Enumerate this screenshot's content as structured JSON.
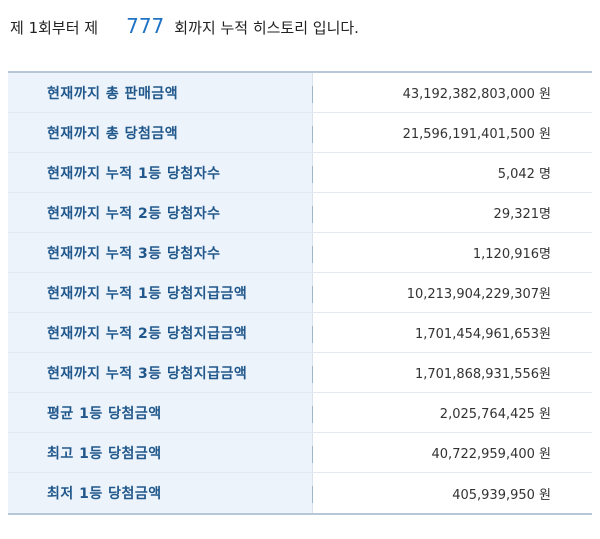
{
  "header": {
    "prefix": "제 1회부터 제",
    "round": "777",
    "suffix": "회까지 누적 히스토리 입니다."
  },
  "rows": [
    {
      "label": "현재까지 총 판매금액",
      "value": "43,192,382,803,000 원"
    },
    {
      "label": "현재까지 총 당첨금액",
      "value": "21,596,191,401,500 원"
    },
    {
      "label": "현재까지 누적 1등 당첨자수",
      "value": "5,042 명"
    },
    {
      "label": "현재까지 누적 2등 당첨자수",
      "value": "29,321명"
    },
    {
      "label": "현재까지 누적 3등 당첨자수",
      "value": "1,120,916명"
    },
    {
      "label": "현재까지 누적 1등 당첨지급금액",
      "value": "10,213,904,229,307원"
    },
    {
      "label": "현재까지 누적 2등 당첨지급금액",
      "value": "1,701,454,961,653원"
    },
    {
      "label": "현재까지 누적 3등 당첨지급금액",
      "value": "1,701,868,931,556원"
    },
    {
      "label": "평균 1등 당첨금액",
      "value": "2,025,764,425 원"
    },
    {
      "label": "최고 1등 당첨금액",
      "value": "40,722,959,400 원"
    },
    {
      "label": "최저 1등 당첨금액",
      "value": "405,939,950 원"
    }
  ],
  "colors": {
    "accent": "#1f73c4",
    "label_text": "#21588c",
    "label_bg": "#edf3fa",
    "border": "#b7c7d8"
  }
}
